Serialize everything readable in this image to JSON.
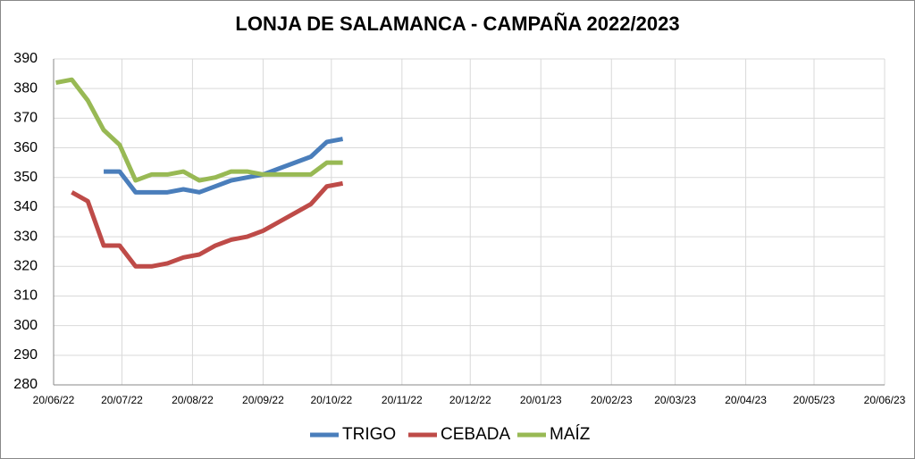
{
  "chart_data": {
    "type": "line",
    "title": "LONJA DE SALAMANCA - CAMPAÑA 2022/2023",
    "x": [
      "21/06/22",
      "28/06/22",
      "05/07/22",
      "12/07/22",
      "19/07/22",
      "26/07/22",
      "02/08/22",
      "09/08/22",
      "16/08/22",
      "23/08/22",
      "30/08/22",
      "06/09/22",
      "13/09/22",
      "20/09/22",
      "27/09/22",
      "04/10/22",
      "11/10/22",
      "18/10/22",
      "25/10/22"
    ],
    "series": [
      {
        "name": "TRIGO",
        "color": "#4a7ebb",
        "values": [
          null,
          null,
          null,
          352,
          352,
          345,
          345,
          345,
          346,
          345,
          347,
          349,
          350,
          351,
          353,
          355,
          357,
          362,
          363
        ]
      },
      {
        "name": "CEBADA",
        "color": "#be4b48",
        "values": [
          null,
          345,
          342,
          327,
          327,
          320,
          320,
          321,
          323,
          324,
          327,
          329,
          330,
          332,
          335,
          338,
          341,
          347,
          348
        ]
      },
      {
        "name": "MAÍZ",
        "color": "#98b954",
        "values": [
          382,
          383,
          376,
          366,
          361,
          349,
          351,
          351,
          352,
          349,
          350,
          352,
          352,
          351,
          351,
          351,
          351,
          355,
          355
        ]
      }
    ],
    "xlim": [
      "20/06/22",
      "20/06/23"
    ],
    "xticks": [
      "20/06/22",
      "20/07/22",
      "20/08/22",
      "20/09/22",
      "20/10/22",
      "20/11/22",
      "20/12/22",
      "20/01/23",
      "20/02/23",
      "20/03/23",
      "20/04/23",
      "20/05/23",
      "20/06/23"
    ],
    "ylim": [
      280,
      390
    ],
    "yticks": [
      280,
      290,
      300,
      310,
      320,
      330,
      340,
      350,
      360,
      370,
      380,
      390
    ],
    "grid": true,
    "legend": "bottom"
  }
}
